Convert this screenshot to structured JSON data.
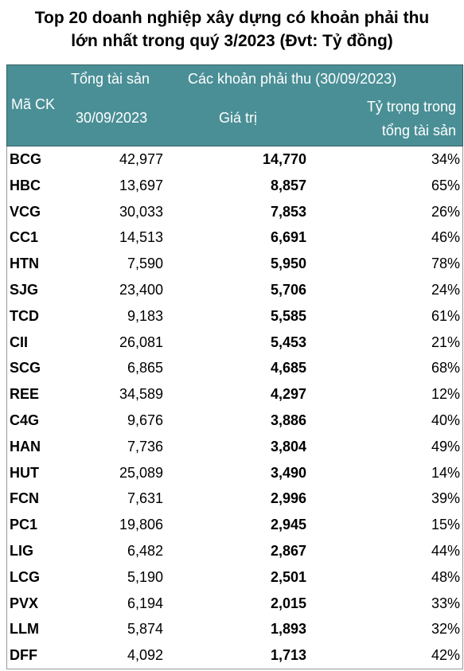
{
  "title": {
    "line1": "Top 20 doanh nghiệp xây dựng có khoản phải thu",
    "line2": "lớn nhất trong quý 3/2023 (Đvt: Tỷ đồng)"
  },
  "headers": {
    "ma_ck": "Mã CK",
    "tong_tai_san": "Tổng tài sản",
    "date_assets": "30/09/2023",
    "khoan_phai_thu": "Các khoản phải thu (30/09/2023)",
    "gia_tri": "Giá trị",
    "ty_trong_line1": "Tỷ trọng trong",
    "ty_trong_line2": "tổng tài sản"
  },
  "colors": {
    "header_bg": "#4a8f96",
    "header_text": "#ffffff"
  },
  "rows": [
    {
      "code": "BCG",
      "assets": "42,977",
      "value": "14,770",
      "ratio": "34%"
    },
    {
      "code": "HBC",
      "assets": "13,697",
      "value": "8,857",
      "ratio": "65%"
    },
    {
      "code": "VCG",
      "assets": "30,033",
      "value": "7,853",
      "ratio": "26%"
    },
    {
      "code": "CC1",
      "assets": "14,513",
      "value": "6,691",
      "ratio": "46%"
    },
    {
      "code": "HTN",
      "assets": "7,590",
      "value": "5,950",
      "ratio": "78%"
    },
    {
      "code": "SJG",
      "assets": "23,400",
      "value": "5,706",
      "ratio": "24%"
    },
    {
      "code": "TCD",
      "assets": "9,183",
      "value": "5,585",
      "ratio": "61%"
    },
    {
      "code": "CII",
      "assets": "26,081",
      "value": "5,453",
      "ratio": "21%"
    },
    {
      "code": "SCG",
      "assets": "6,865",
      "value": "4,685",
      "ratio": "68%"
    },
    {
      "code": "REE",
      "assets": "34,589",
      "value": "4,297",
      "ratio": "12%"
    },
    {
      "code": "C4G",
      "assets": "9,676",
      "value": "3,886",
      "ratio": "40%"
    },
    {
      "code": "HAN",
      "assets": "7,736",
      "value": "3,804",
      "ratio": "49%"
    },
    {
      "code": "HUT",
      "assets": "25,089",
      "value": "3,490",
      "ratio": "14%"
    },
    {
      "code": "FCN",
      "assets": "7,631",
      "value": "2,996",
      "ratio": "39%"
    },
    {
      "code": "PC1",
      "assets": "19,806",
      "value": "2,945",
      "ratio": "15%"
    },
    {
      "code": "LIG",
      "assets": "6,482",
      "value": "2,867",
      "ratio": "44%"
    },
    {
      "code": "LCG",
      "assets": "5,190",
      "value": "2,501",
      "ratio": "48%"
    },
    {
      "code": "PVX",
      "assets": "6,194",
      "value": "2,015",
      "ratio": "33%"
    },
    {
      "code": "LLM",
      "assets": "5,874",
      "value": "1,893",
      "ratio": "32%"
    },
    {
      "code": "DFF",
      "assets": "4,092",
      "value": "1,713",
      "ratio": "42%"
    }
  ]
}
